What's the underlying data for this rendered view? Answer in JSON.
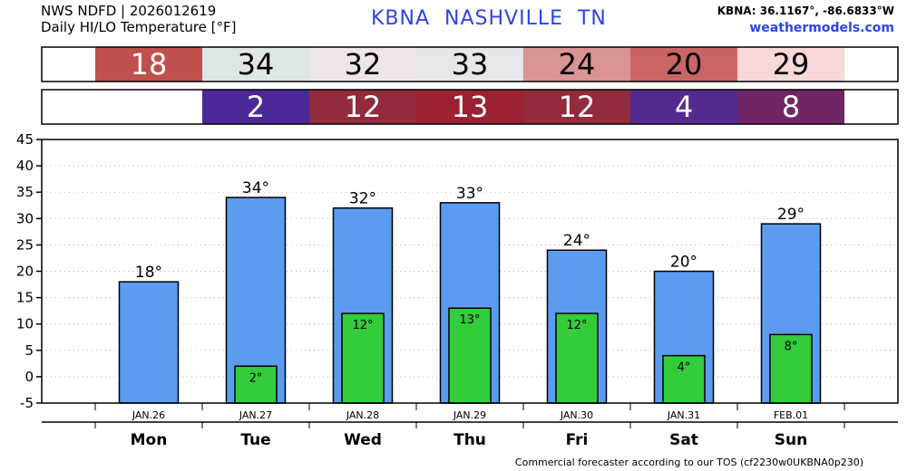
{
  "header": {
    "line1": "NWS NDFD | 2026012619",
    "line2": "Daily HI/LO Temperature [°F]",
    "station": "KBNA NASHVILLE TN",
    "coords": "KBNA: 36.1167°, -86.6833°W",
    "site": "weathermodels.com"
  },
  "footer": "Commercial forecaster according to our TOS (cf2230w0UKBNA0p230)",
  "strips": {
    "high": [
      {
        "text": "18",
        "color": "#c0504d",
        "text_color": "#ffffff"
      },
      {
        "text": "34",
        "color": "#dfe6e6",
        "text_color": "#000000"
      },
      {
        "text": "32",
        "color": "#eee6e6",
        "text_color": "#000000"
      },
      {
        "text": "33",
        "color": "#e8e7e8",
        "text_color": "#000000"
      },
      {
        "text": "24",
        "color": "#d99493",
        "text_color": "#000000"
      },
      {
        "text": "20",
        "color": "#c96664",
        "text_color": "#000000"
      },
      {
        "text": "29",
        "color": "#f8d8da",
        "text_color": "#000000"
      }
    ],
    "low": [
      {
        "text": "",
        "color": "#ffffff",
        "text_color": "#000000"
      },
      {
        "text": "2",
        "color": "#4b2898",
        "text_color": "#ffffff"
      },
      {
        "text": "12",
        "color": "#922b3c",
        "text_color": "#ffffff"
      },
      {
        "text": "13",
        "color": "#9a2232",
        "text_color": "#ffffff"
      },
      {
        "text": "12",
        "color": "#922b3c",
        "text_color": "#ffffff"
      },
      {
        "text": "4",
        "color": "#542a8e",
        "text_color": "#ffffff"
      },
      {
        "text": "8",
        "color": "#722566",
        "text_color": "#ffffff"
      }
    ]
  },
  "chart_data": {
    "type": "bar",
    "categories": [
      "Mon",
      "Tue",
      "Wed",
      "Thu",
      "Fri",
      "Sat",
      "Sun"
    ],
    "dates": [
      "JAN.26",
      "JAN.27",
      "JAN.28",
      "JAN.29",
      "JAN.30",
      "JAN.31",
      "FEB.01"
    ],
    "series": [
      {
        "values": [
          18,
          34,
          32,
          33,
          24,
          20,
          29
        ],
        "color": "#5b9cf0"
      },
      {
        "values": [
          null,
          2,
          12,
          13,
          12,
          4,
          8
        ],
        "color": "#33cc3b"
      }
    ],
    "high_labels": [
      "18°",
      "34°",
      "32°",
      "33°",
      "24°",
      "20°",
      "29°"
    ],
    "low_labels": [
      "",
      "2°",
      "12°",
      "13°",
      "12°",
      "4°",
      "8°"
    ],
    "ylim": [
      -5,
      45
    ],
    "yticks": [
      "-5",
      "0",
      "5",
      "10",
      "15",
      "20",
      "25",
      "30",
      "35",
      "40",
      "45"
    ],
    "grid": true
  }
}
